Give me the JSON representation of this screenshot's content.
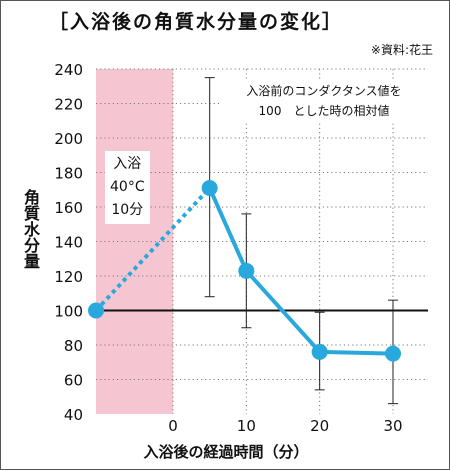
{
  "title": "［入浴後の角質水分量の変化］",
  "source": "※資料:花王",
  "chart_data": {
    "type": "line",
    "ylabel": "角質水分量",
    "xlabel": "入浴後の経過時間（分）",
    "ylim": [
      40,
      240
    ],
    "y_ticks": [
      "40",
      "60",
      "80",
      "100",
      "120",
      "140",
      "160",
      "180",
      "200",
      "220",
      "240"
    ],
    "x_ticks": [
      "0",
      "10",
      "20",
      "30"
    ],
    "baseline": 100,
    "note_lines": [
      "入浴前のコンダクタンス値を",
      "100　とした時の相対値"
    ],
    "bath_lines": [
      "入浴",
      "40°C",
      "10分"
    ],
    "series": [
      {
        "x": [
          -10,
          5,
          10,
          20,
          30
        ],
        "values": [
          100,
          171,
          123,
          76,
          75
        ],
        "error_low": [
          null,
          108,
          90,
          54,
          46
        ],
        "error_high": [
          null,
          235,
          156,
          99,
          106
        ]
      }
    ],
    "colors": {
      "line": "#29a8dd",
      "shade": "#f5c6d2",
      "grid": "#7a7a7a"
    },
    "grid": true
  }
}
